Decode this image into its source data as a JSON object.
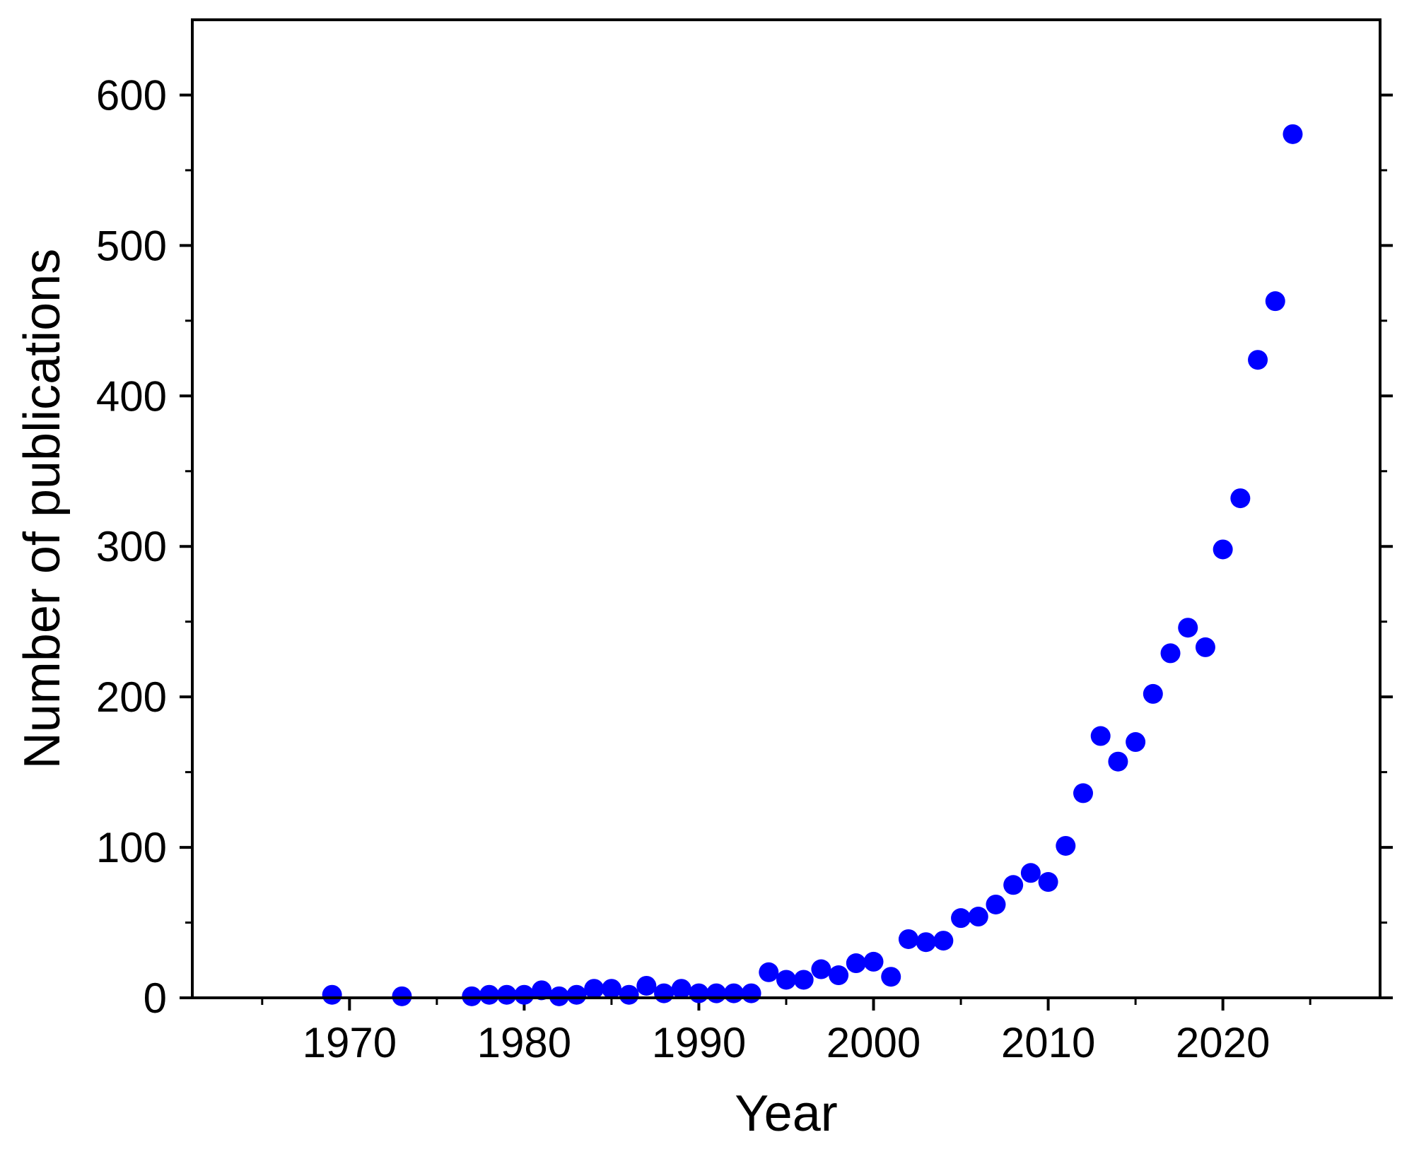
{
  "chart_data": {
    "type": "scatter",
    "xlabel": "Year",
    "ylabel": "Number of publications",
    "xlim": [
      1961,
      2029
    ],
    "ylim": [
      0,
      650
    ],
    "x_ticks": [
      1970,
      1980,
      1990,
      2000,
      2010,
      2020
    ],
    "x_minor_ticks": [
      1965,
      1975,
      1985,
      1995,
      2005,
      2015,
      2025
    ],
    "y_ticks": [
      0,
      100,
      200,
      300,
      400,
      500,
      600
    ],
    "y_minor_ticks": [
      50,
      150,
      250,
      350,
      450,
      550
    ],
    "grid": false,
    "marker_color": "#0000ff",
    "series": [
      {
        "x": [
          1969,
          1973,
          1977,
          1978,
          1979,
          1980,
          1981,
          1982,
          1983,
          1984,
          1985,
          1986,
          1987,
          1988,
          1989,
          1990,
          1991,
          1992,
          1993,
          1994,
          1995,
          1996,
          1997,
          1998,
          1999,
          2000,
          2001,
          2002,
          2003,
          2004,
          2005,
          2006,
          2007,
          2008,
          2009,
          2010,
          2011,
          2012,
          2013,
          2014,
          2015,
          2016,
          2017,
          2018,
          2019,
          2020,
          2021,
          2022,
          2023,
          2024
        ],
        "y": [
          2,
          1,
          1,
          2,
          2,
          2,
          5,
          1,
          2,
          6,
          6,
          2,
          8,
          3,
          6,
          3,
          3,
          3,
          3,
          17,
          12,
          12,
          19,
          15,
          23,
          24,
          14,
          39,
          37,
          38,
          53,
          54,
          62,
          75,
          83,
          77,
          101,
          136,
          174,
          157,
          170,
          202,
          229,
          246,
          233,
          298,
          332,
          424,
          463,
          574
        ]
      }
    ]
  }
}
